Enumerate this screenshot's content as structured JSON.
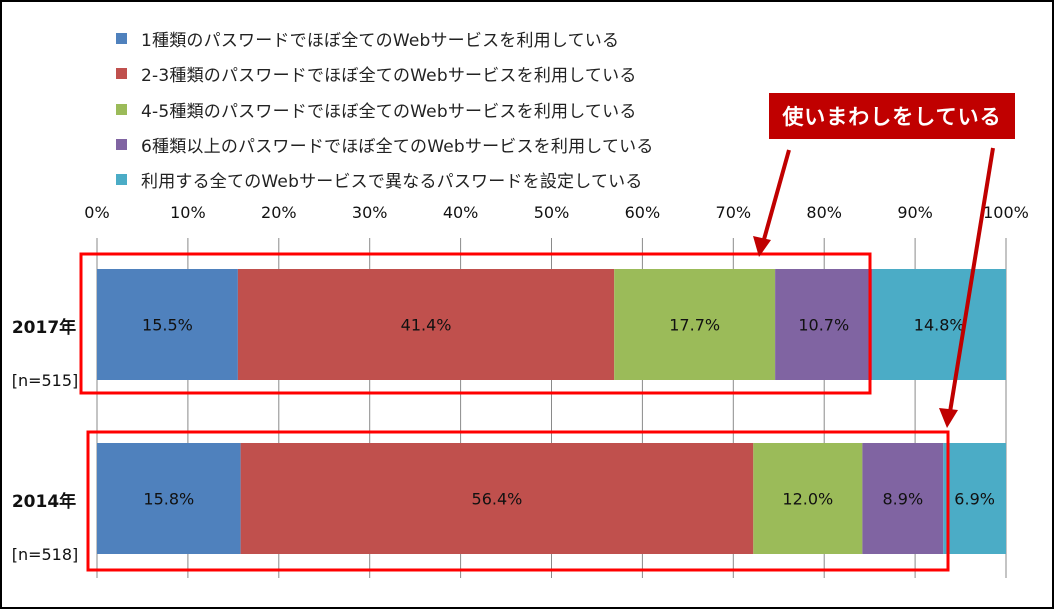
{
  "chart_data": {
    "type": "bar",
    "orientation": "horizontal",
    "stacked": "percent",
    "categories": [
      "2017年",
      "2014年"
    ],
    "category_notes": [
      "[n=515]",
      "[n=518]"
    ],
    "series": [
      {
        "name": "1種類のパスワードでほぼ全てのWebサービスを利用している",
        "color": "#4f81bd",
        "values": [
          15.5,
          15.8
        ]
      },
      {
        "name": "2-3種類のパスワードでほぼ全てのWebサービスを利用している",
        "color": "#c0504d",
        "values": [
          41.4,
          56.4
        ]
      },
      {
        "name": "4-5種類のパスワードでほぼ全てのWebサービスを利用している",
        "color": "#9bbb59",
        "values": [
          17.7,
          12.0
        ]
      },
      {
        "name": "6種類以上のパスワードでほぼ全てのWebサービスを利用している",
        "color": "#8064a2",
        "values": [
          10.7,
          8.9
        ]
      },
      {
        "name": "利用する全てのWebサービスで異なるパスワードを設定している",
        "color": "#4bacc6",
        "values": [
          14.8,
          6.9
        ]
      }
    ],
    "data_labels": [
      [
        "15.5%",
        "41.4%",
        "17.7%",
        "10.7%",
        "14.8%"
      ],
      [
        "15.8%",
        "56.4%",
        "12.0%",
        "8.9%",
        "6.9%"
      ]
    ],
    "xlim": [
      0,
      100
    ],
    "x_ticks": [
      "0%",
      "10%",
      "20%",
      "30%",
      "40%",
      "50%",
      "60%",
      "70%",
      "80%",
      "90%",
      "100%"
    ],
    "grid": "vertical gridlines",
    "legend": "top",
    "annotation": {
      "text": "使いまわしをしている",
      "color": "#c00000",
      "highlights": [
        "2017年: first four segments",
        "2014年: first four segments"
      ]
    }
  }
}
